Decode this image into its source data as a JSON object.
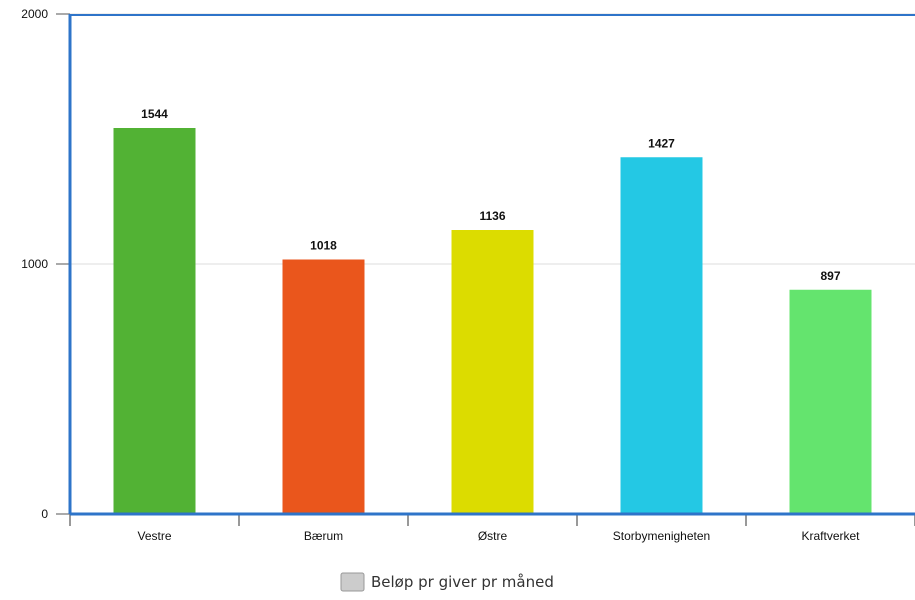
{
  "chart_data": {
    "type": "bar",
    "categories": [
      "Vestre",
      "Bærum",
      "Østre",
      "Storbymenigheten",
      "Kraftverket"
    ],
    "series": [
      {
        "name": "Beløp pr giver pr måned",
        "values": [
          1544,
          1018,
          1136,
          1427,
          897
        ],
        "colors": [
          "#52b234",
          "#ea561c",
          "#dcdc00",
          "#24c8e4",
          "#64e46e"
        ]
      }
    ],
    "ylim": [
      0,
      2000
    ],
    "yticks": [
      "0",
      "1000",
      "2000"
    ],
    "grid": true,
    "legend_position": "bottom",
    "legend_swatch_color": "#cccccc",
    "axis_color": "#2e74c9",
    "grid_color": "#dddddd"
  }
}
